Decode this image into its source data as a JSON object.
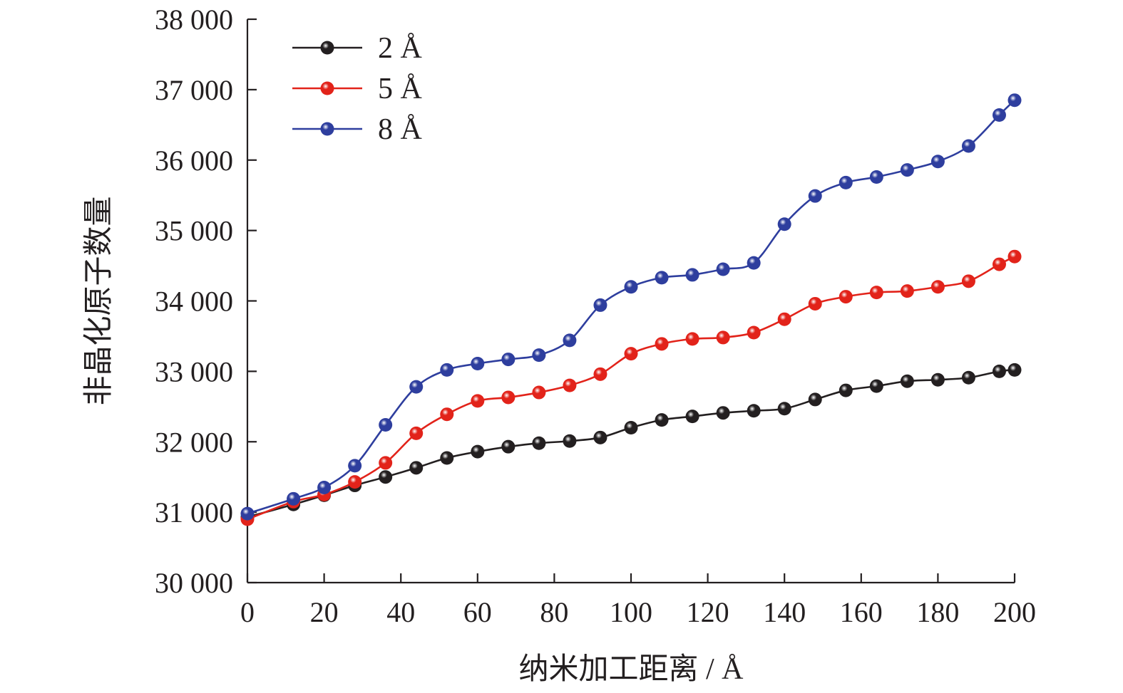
{
  "chart_data": {
    "type": "line",
    "title": "",
    "xlabel": "纳米加工距离 / Å",
    "ylabel": "非晶化原子数量",
    "xlim": [
      0,
      200
    ],
    "ylim": [
      30000,
      38000
    ],
    "xticks": [
      0,
      20,
      40,
      60,
      80,
      100,
      120,
      140,
      160,
      180,
      200
    ],
    "yticks": [
      30000,
      31000,
      32000,
      33000,
      34000,
      35000,
      36000,
      37000,
      38000
    ],
    "xtick_labels": [
      "0",
      "20",
      "40",
      "60",
      "80",
      "100",
      "120",
      "140",
      "160",
      "180",
      "200"
    ],
    "ytick_labels": [
      "30 000",
      "31 000",
      "32 000",
      "33 000",
      "34 000",
      "35 000",
      "36 000",
      "37 000",
      "38 000"
    ],
    "grid": false,
    "legend_position": "top-left",
    "x": [
      0,
      12,
      20,
      28,
      36,
      44,
      52,
      60,
      68,
      76,
      84,
      92,
      100,
      108,
      116,
      124,
      132,
      140,
      148,
      156,
      164,
      172,
      180,
      188,
      196,
      200
    ],
    "series": [
      {
        "name": "2 Å",
        "color": "#231f20",
        "values": [
          30930,
          31110,
          31240,
          31380,
          31500,
          31630,
          31770,
          31860,
          31930,
          31980,
          32010,
          32060,
          32200,
          32310,
          32360,
          32410,
          32440,
          32470,
          32600,
          32730,
          32790,
          32860,
          32880,
          32910,
          33000,
          33020
        ]
      },
      {
        "name": "5 Å",
        "color": "#e2231a",
        "values": [
          30900,
          31150,
          31250,
          31430,
          31700,
          32120,
          32390,
          32580,
          32630,
          32700,
          32800,
          32960,
          33250,
          33390,
          33460,
          33480,
          33550,
          33740,
          33960,
          34060,
          34120,
          34140,
          34200,
          34280,
          34520,
          34630
        ]
      },
      {
        "name": "8 Å",
        "color": "#2e3e9e",
        "values": [
          30980,
          31190,
          31350,
          31660,
          32240,
          32780,
          33020,
          33110,
          33170,
          33230,
          33440,
          33940,
          34200,
          34330,
          34370,
          34450,
          34540,
          35090,
          35490,
          35680,
          35760,
          35860,
          35980,
          36200,
          36640,
          36850
        ]
      }
    ]
  }
}
